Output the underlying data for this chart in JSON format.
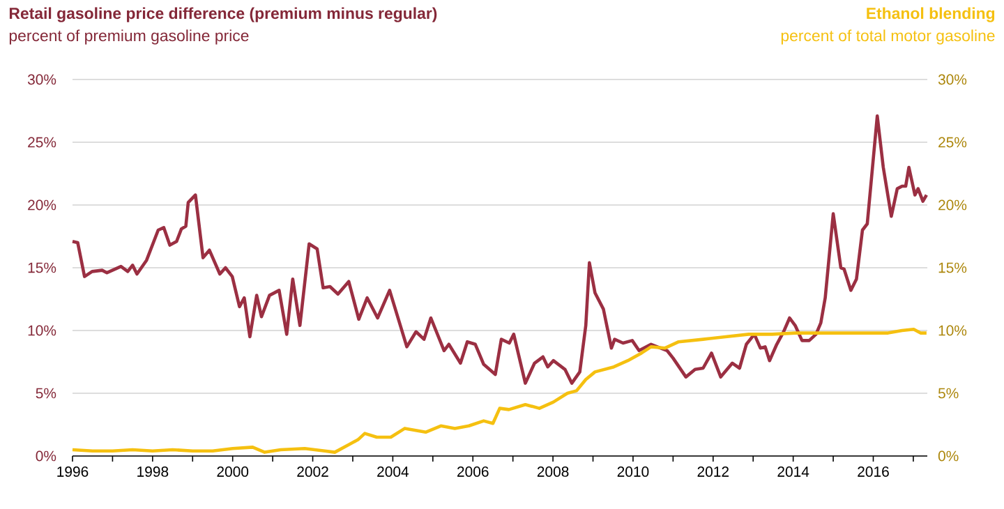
{
  "chart_data": {
    "type": "line",
    "ylabel": "percent of premium gasoline price",
    "y2label": "percent of total motor gasoline",
    "xlim": [
      1996,
      2017.35
    ],
    "xticks": [
      1996,
      {
        "value": 1997,
        "label": null
      },
      1998,
      {
        "value": 1999,
        "label": null
      },
      2000,
      {
        "value": 2001,
        "label": null
      },
      2002,
      {
        "value": 2003,
        "label": null
      },
      2004,
      {
        "value": 2005,
        "label": null
      },
      2006,
      {
        "value": 2007,
        "label": null
      },
      2008,
      {
        "value": 2009,
        "label": null
      },
      2010,
      {
        "value": 2011,
        "label": null
      },
      2012,
      {
        "value": 2013,
        "label": null
      },
      2014,
      {
        "value": 2015,
        "label": null
      },
      2016,
      {
        "value": 2017,
        "label": null
      }
    ],
    "ylim": [
      0,
      30
    ],
    "yticks": [
      {
        "value": 0,
        "label": "0%"
      },
      {
        "value": 5,
        "label": "5%"
      },
      {
        "value": 10,
        "label": "10%"
      },
      {
        "value": 15,
        "label": "15%"
      },
      {
        "value": 20,
        "label": "20%"
      },
      {
        "value": 25,
        "label": "25%"
      },
      {
        "value": 30,
        "label": "30%"
      }
    ],
    "y2lim": [
      0,
      30
    ],
    "y2ticks": [
      {
        "value": 0,
        "label": "0%"
      },
      {
        "value": 5,
        "label": "5%"
      },
      {
        "value": 10,
        "label": "10%"
      },
      {
        "value": 15,
        "label": "15%"
      },
      {
        "value": 20,
        "label": "20%"
      },
      {
        "value": 25,
        "label": "25%"
      },
      {
        "value": 30,
        "label": "30%"
      }
    ],
    "grid": "y",
    "series": [
      {
        "name": "Retail gasoline price difference (premium minus regular)",
        "color": "#9b2f42",
        "axis": "y",
        "x": [
          1996.0,
          1996.13,
          1996.3,
          1996.49,
          1996.74,
          1996.86,
          1997.21,
          1997.38,
          1997.5,
          1997.61,
          1997.85,
          1998.14,
          1998.28,
          1998.43,
          1998.6,
          1998.72,
          1998.83,
          1998.89,
          1999.07,
          1999.26,
          1999.42,
          1999.68,
          1999.82,
          1999.99,
          2000.17,
          2000.29,
          2000.43,
          2000.6,
          2000.72,
          2000.92,
          2001.16,
          2001.35,
          2001.5,
          2001.68,
          2001.91,
          2002.11,
          2002.26,
          2002.43,
          2002.63,
          2002.9,
          2003.15,
          2003.36,
          2003.62,
          2003.92,
          2004.35,
          2004.58,
          2004.78,
          2004.95,
          2005.28,
          2005.4,
          2005.69,
          2005.86,
          2006.06,
          2006.27,
          2006.56,
          2006.71,
          2006.91,
          2007.02,
          2007.31,
          2007.54,
          2007.75,
          2007.87,
          2008.01,
          2008.3,
          2008.47,
          2008.67,
          2008.82,
          2008.91,
          2009.05,
          2009.26,
          2009.46,
          2009.54,
          2009.75,
          2009.98,
          2010.15,
          2010.45,
          2010.85,
          2011.0,
          2011.32,
          2011.55,
          2011.75,
          2011.96,
          2012.19,
          2012.48,
          2012.66,
          2012.83,
          2013.03,
          2013.18,
          2013.3,
          2013.41,
          2013.59,
          2013.76,
          2013.91,
          2014.05,
          2014.22,
          2014.4,
          2014.57,
          2014.69,
          2014.8,
          2015.0,
          2015.19,
          2015.27,
          2015.44,
          2015.58,
          2015.73,
          2015.85,
          2016.1,
          2016.25,
          2016.45,
          2016.6,
          2016.72,
          2016.81,
          2016.89,
          2017.04,
          2017.12,
          2017.24,
          2017.33
        ],
        "values": [
          17.1,
          17.0,
          14.3,
          14.7,
          14.8,
          14.6,
          15.1,
          14.7,
          15.2,
          14.5,
          15.6,
          18.0,
          18.2,
          16.8,
          17.1,
          18.1,
          18.3,
          20.2,
          20.8,
          15.8,
          16.4,
          14.5,
          15.0,
          14.3,
          11.9,
          12.6,
          9.5,
          12.8,
          11.1,
          12.8,
          13.2,
          9.7,
          14.1,
          10.4,
          16.9,
          16.5,
          13.4,
          13.5,
          12.9,
          13.9,
          10.9,
          12.6,
          11.0,
          13.2,
          8.7,
          9.9,
          9.3,
          11.0,
          8.4,
          8.9,
          7.4,
          9.1,
          8.9,
          7.3,
          6.5,
          9.3,
          9.0,
          9.7,
          5.8,
          7.4,
          7.9,
          7.1,
          7.6,
          6.9,
          5.8,
          6.7,
          10.4,
          15.4,
          13.0,
          11.7,
          8.6,
          9.3,
          9.0,
          9.2,
          8.4,
          8.9,
          8.4,
          7.8,
          6.3,
          6.9,
          7.0,
          8.2,
          6.3,
          7.4,
          7.0,
          8.9,
          9.7,
          8.6,
          8.7,
          7.6,
          8.9,
          9.9,
          11.0,
          10.4,
          9.2,
          9.2,
          9.7,
          10.6,
          12.6,
          19.3,
          15.0,
          14.9,
          13.2,
          14.1,
          18.0,
          18.5,
          27.1,
          23.0,
          19.1,
          21.3,
          21.5,
          21.5,
          23.0,
          20.8,
          21.3,
          20.3,
          20.8
        ]
      },
      {
        "name": "Ethanol blending",
        "color": "#f5c010",
        "axis": "y2",
        "x": [
          1996.0,
          1996.5,
          1997.0,
          1997.5,
          1998.0,
          1998.5,
          1999.0,
          1999.5,
          2000.0,
          2000.5,
          2000.8,
          2001.2,
          2001.8,
          2002.3,
          2002.55,
          2002.9,
          2003.13,
          2003.3,
          2003.6,
          2003.95,
          2004.3,
          2004.82,
          2005.2,
          2005.55,
          2005.9,
          2006.27,
          2006.5,
          2006.67,
          2006.9,
          2007.31,
          2007.66,
          2008.01,
          2008.36,
          2008.59,
          2008.82,
          2009.05,
          2009.52,
          2009.87,
          2010.21,
          2010.45,
          2010.8,
          2011.14,
          2011.75,
          2012.31,
          2012.89,
          2013.47,
          2014.05,
          2014.63,
          2015.21,
          2015.79,
          2016.37,
          2016.72,
          2017.01,
          2017.18,
          2017.33
        ],
        "values": [
          0.5,
          0.4,
          0.4,
          0.5,
          0.4,
          0.5,
          0.4,
          0.4,
          0.6,
          0.7,
          0.3,
          0.5,
          0.6,
          0.4,
          0.3,
          0.9,
          1.3,
          1.8,
          1.5,
          1.5,
          2.2,
          1.9,
          2.4,
          2.2,
          2.4,
          2.8,
          2.6,
          3.8,
          3.7,
          4.1,
          3.8,
          4.3,
          5.0,
          5.2,
          6.1,
          6.7,
          7.1,
          7.6,
          8.2,
          8.7,
          8.6,
          9.1,
          9.3,
          9.5,
          9.7,
          9.7,
          9.8,
          9.8,
          9.8,
          9.8,
          9.8,
          10.0,
          10.1,
          9.8,
          9.8
        ]
      }
    ]
  }
}
